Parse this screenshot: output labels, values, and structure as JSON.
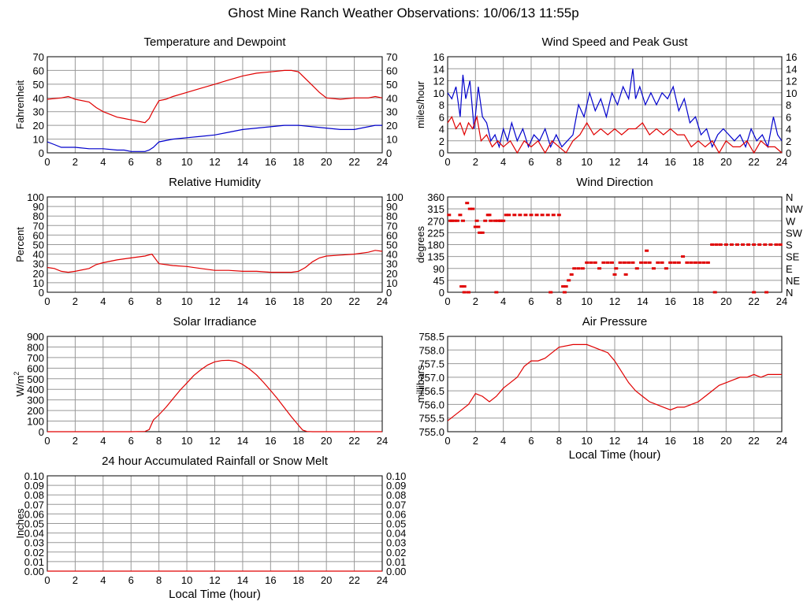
{
  "page_title": "Ghost Mine Ranch Weather Observations: 10/06/13 11:55p",
  "colors": {
    "red": "#e00000",
    "blue": "#0000cc",
    "grid": "#999999",
    "frame": "#000000"
  },
  "chart_data": [
    {
      "id": "temperature",
      "type": "line",
      "title": "Temperature and Dewpoint",
      "ylabel": "Fahrenheit",
      "xlabel": "",
      "xlim": [
        0,
        24
      ],
      "ylim": [
        0,
        70
      ],
      "x_ticks": [
        0,
        2,
        4,
        6,
        8,
        10,
        12,
        14,
        16,
        18,
        20,
        22,
        24
      ],
      "y_ticks": [
        "0",
        "10",
        "20",
        "30",
        "40",
        "50",
        "60",
        "70"
      ],
      "y_ticks_right": [
        "0",
        "10",
        "20",
        "30",
        "40",
        "50",
        "60",
        "70"
      ],
      "grid": true,
      "series": [
        {
          "color": "#e00000",
          "x": [
            0,
            1,
            1.5,
            2,
            3,
            3.5,
            4,
            4.5,
            5,
            5.5,
            6,
            6.5,
            7,
            7.3,
            7.6,
            8,
            8.5,
            9,
            10,
            11,
            12,
            13,
            14,
            15,
            16,
            17,
            17.5,
            18,
            19,
            19.5,
            20,
            21,
            22,
            23,
            23.5,
            24
          ],
          "y": [
            39,
            40,
            41,
            39,
            37,
            33,
            30,
            28,
            26,
            25,
            24,
            23,
            22,
            25,
            31,
            38,
            39,
            41,
            44,
            47,
            50,
            53,
            56,
            58,
            59,
            60,
            60,
            59,
            49,
            44,
            40,
            39,
            40,
            40,
            41,
            40
          ]
        },
        {
          "color": "#0000cc",
          "x": [
            0,
            0.5,
            1,
            2,
            3,
            4,
            5,
            5.5,
            6,
            6.5,
            7,
            7.3,
            7.6,
            8,
            9,
            10,
            11,
            12,
            13,
            14,
            15,
            16,
            17,
            18,
            19,
            20,
            21,
            22,
            23,
            23.5,
            24
          ],
          "y": [
            8,
            6,
            4,
            4,
            3,
            3,
            2,
            2,
            1,
            1,
            1,
            2,
            4,
            8,
            10,
            11,
            12,
            13,
            15,
            17,
            18,
            19,
            20,
            20,
            19,
            18,
            17,
            17,
            19,
            20,
            20
          ]
        }
      ]
    },
    {
      "id": "wind-speed",
      "type": "line",
      "title": "Wind Speed and Peak Gust",
      "ylabel": "miles/hour",
      "xlabel": "",
      "xlim": [
        0,
        24
      ],
      "ylim": [
        0,
        16
      ],
      "x_ticks": [
        0,
        2,
        4,
        6,
        8,
        10,
        12,
        14,
        16,
        18,
        20,
        22,
        24
      ],
      "y_ticks": [
        "0",
        "2",
        "4",
        "6",
        "8",
        "10",
        "12",
        "14",
        "16"
      ],
      "y_ticks_right": [
        "0",
        "2",
        "4",
        "6",
        "8",
        "10",
        "12",
        "14",
        "16"
      ],
      "grid": true,
      "series": [
        {
          "color": "#0000cc",
          "x": [
            0,
            0.3,
            0.6,
            0.9,
            1.1,
            1.3,
            1.6,
            1.9,
            2.2,
            2.5,
            2.8,
            3.1,
            3.4,
            3.7,
            4,
            4.3,
            4.6,
            5,
            5.4,
            5.8,
            6.2,
            6.6,
            7,
            7.4,
            7.8,
            8.2,
            8.6,
            9,
            9.4,
            9.8,
            10.2,
            10.6,
            11,
            11.4,
            11.8,
            12.2,
            12.6,
            13,
            13.3,
            13.5,
            13.8,
            14.2,
            14.6,
            15,
            15.4,
            15.8,
            16.2,
            16.6,
            17,
            17.4,
            17.8,
            18.2,
            18.6,
            19,
            19.4,
            19.8,
            20.2,
            20.6,
            21,
            21.4,
            21.8,
            22.2,
            22.6,
            23,
            23.4,
            23.7,
            24
          ],
          "y": [
            10,
            9,
            11,
            6,
            13,
            9,
            12,
            4,
            11,
            6,
            5,
            2,
            3,
            1,
            4,
            2,
            5,
            2,
            4,
            1,
            3,
            2,
            4,
            1,
            3,
            1,
            2,
            3,
            8,
            6,
            10,
            7,
            9,
            6,
            10,
            8,
            11,
            9,
            14,
            9,
            11,
            8,
            10,
            8,
            10,
            9,
            11,
            7,
            9,
            5,
            6,
            3,
            4,
            1,
            3,
            4,
            3,
            2,
            3,
            1,
            4,
            2,
            3,
            1,
            6,
            3,
            2
          ]
        },
        {
          "color": "#e00000",
          "x": [
            0,
            0.3,
            0.6,
            0.9,
            1.2,
            1.5,
            1.8,
            2.1,
            2.4,
            2.8,
            3.2,
            3.6,
            4,
            4.5,
            5,
            5.5,
            6,
            6.5,
            7,
            7.5,
            8,
            8.5,
            9,
            9.5,
            10,
            10.5,
            11,
            11.5,
            12,
            12.5,
            13,
            13.5,
            14,
            14.5,
            15,
            15.5,
            16,
            16.5,
            17,
            17.5,
            18,
            18.5,
            19,
            19.5,
            20,
            20.5,
            21,
            21.5,
            22,
            22.5,
            23,
            23.5,
            24
          ],
          "y": [
            5,
            6,
            4,
            5,
            3,
            5,
            4,
            6,
            2,
            3,
            1,
            2,
            1,
            2,
            0,
            2,
            1,
            2,
            0,
            2,
            1,
            0,
            2,
            3,
            5,
            3,
            4,
            3,
            4,
            3,
            4,
            4,
            5,
            3,
            4,
            3,
            4,
            3,
            3,
            1,
            2,
            1,
            2,
            0,
            2,
            1,
            1,
            2,
            0,
            2,
            1,
            1,
            0
          ]
        }
      ]
    },
    {
      "id": "humidity",
      "type": "line",
      "title": "Relative Humidity",
      "ylabel": "Percent",
      "xlabel": "",
      "xlim": [
        0,
        24
      ],
      "ylim": [
        0,
        100
      ],
      "x_ticks": [
        0,
        2,
        4,
        6,
        8,
        10,
        12,
        14,
        16,
        18,
        20,
        22,
        24
      ],
      "y_ticks": [
        "0",
        "10",
        "20",
        "30",
        "40",
        "50",
        "60",
        "70",
        "80",
        "90",
        "100"
      ],
      "y_ticks_right": [
        "0",
        "10",
        "20",
        "30",
        "40",
        "50",
        "60",
        "70",
        "80",
        "90",
        "100"
      ],
      "grid": true,
      "series": [
        {
          "color": "#e00000",
          "x": [
            0,
            0.5,
            1,
            1.5,
            2,
            3,
            3.5,
            4,
            5,
            6,
            7,
            7.5,
            8,
            9,
            10,
            11,
            12,
            13,
            14,
            15,
            16,
            17,
            17.5,
            18,
            18.5,
            19,
            19.5,
            20,
            21,
            22,
            23,
            23.5,
            24
          ],
          "y": [
            26,
            25,
            22,
            21,
            22,
            25,
            29,
            31,
            34,
            36,
            38,
            40,
            30,
            28,
            27,
            25,
            23,
            23,
            22,
            22,
            21,
            21,
            21,
            22,
            26,
            32,
            36,
            38,
            39,
            40,
            42,
            44,
            43
          ]
        }
      ]
    },
    {
      "id": "wind-direction",
      "type": "scatter",
      "title": "Wind Direction",
      "ylabel": "degrees",
      "xlabel": "",
      "xlim": [
        0,
        24
      ],
      "ylim": [
        0,
        360
      ],
      "x_ticks": [
        0,
        2,
        4,
        6,
        8,
        10,
        12,
        14,
        16,
        18,
        20,
        22,
        24
      ],
      "y_ticks": [
        "0",
        "45",
        "90",
        "135",
        "180",
        "225",
        "270",
        "315",
        "360"
      ],
      "y_ticks_right": [
        "N",
        "NE",
        "E",
        "SE",
        "S",
        "SW",
        "W",
        "NW",
        "N"
      ],
      "grid": true,
      "series": [
        {
          "color": "#e00000",
          "x": [
            0.1,
            0.3,
            0.5,
            0.7,
            0.9,
            1.1,
            1.2,
            1.4,
            1.6,
            1.8,
            2.0,
            2.1,
            2.3,
            2.5,
            2.7,
            2.9,
            3.1,
            3.4,
            3.6,
            3.8,
            4.0,
            4.2,
            4.4,
            4.8,
            5.2,
            5.6,
            6.0,
            6.4,
            6.8,
            7.2,
            7.6,
            8.0,
            8.3,
            8.5,
            8.7,
            8.9,
            9.1,
            9.4,
            9.7,
            10.0,
            10.3,
            10.6,
            10.9,
            11.2,
            11.5,
            11.8,
            12.1,
            12.4,
            12.7,
            13.0,
            13.3,
            13.6,
            13.9,
            14.2,
            14.5,
            14.8,
            15.1,
            15.4,
            15.7,
            16.0,
            16.3,
            16.6,
            16.9,
            17.2,
            17.5,
            17.8,
            18.1,
            18.4,
            18.7,
            19.0,
            19.3,
            19.6,
            20.0,
            20.4,
            20.8,
            21.2,
            21.6,
            22.0,
            22.4,
            22.8,
            23.2,
            23.6,
            23.9,
            1.0,
            1.2,
            1.5,
            3.5,
            7.4,
            8.4,
            12.0,
            12.8,
            14.3,
            0.2,
            2.2,
            3.0,
            3.8,
            19.2,
            22.0,
            22.9
          ],
          "y": [
            292,
            270,
            270,
            270,
            292,
            270,
            22,
            337,
            315,
            315,
            247,
            270,
            225,
            225,
            270,
            292,
            270,
            270,
            270,
            270,
            270,
            292,
            292,
            292,
            292,
            292,
            292,
            292,
            292,
            292,
            292,
            292,
            22,
            22,
            45,
            67,
            90,
            90,
            90,
            112,
            112,
            112,
            90,
            112,
            112,
            112,
            90,
            112,
            112,
            112,
            112,
            90,
            112,
            112,
            112,
            90,
            112,
            112,
            90,
            112,
            112,
            112,
            135,
            112,
            112,
            112,
            112,
            112,
            112,
            180,
            180,
            180,
            180,
            180,
            180,
            180,
            180,
            180,
            180,
            180,
            180,
            180,
            180,
            22,
            0,
            0,
            0,
            0,
            0,
            67,
            67,
            157,
            270,
            247,
            292,
            270,
            0,
            0,
            0
          ]
        }
      ]
    },
    {
      "id": "solar",
      "type": "line",
      "title": "Solar Irradiance",
      "ylabel": "W/m2",
      "xlabel": "",
      "xlim": [
        0,
        24
      ],
      "ylim": [
        0,
        900
      ],
      "x_ticks": [
        0,
        2,
        4,
        6,
        8,
        10,
        12,
        14,
        16,
        18,
        20,
        22,
        24
      ],
      "y_ticks": [
        "0",
        "100",
        "200",
        "300",
        "400",
        "500",
        "600",
        "700",
        "800",
        "900"
      ],
      "grid": true,
      "series": [
        {
          "color": "#e00000",
          "x": [
            0,
            1,
            2,
            3,
            4,
            5,
            6,
            7,
            7.3,
            7.6,
            8,
            8.5,
            9,
            9.5,
            10,
            10.5,
            11,
            11.5,
            12,
            12.5,
            13,
            13.5,
            14,
            14.5,
            15,
            15.5,
            16,
            16.5,
            17,
            17.5,
            18,
            18.3,
            18.6,
            19,
            20,
            21,
            22,
            23,
            24
          ],
          "y": [
            0,
            0,
            0,
            0,
            0,
            0,
            0,
            2,
            20,
            110,
            160,
            230,
            310,
            390,
            460,
            530,
            585,
            630,
            660,
            672,
            675,
            665,
            635,
            590,
            535,
            465,
            390,
            310,
            225,
            140,
            60,
            15,
            2,
            0,
            0,
            0,
            0,
            0,
            0
          ]
        }
      ]
    },
    {
      "id": "pressure",
      "type": "line",
      "title": "Air Pressure",
      "ylabel": "millibars",
      "xlabel": "Local Time (hour)",
      "xlim": [
        0,
        24
      ],
      "ylim": [
        755.0,
        758.5
      ],
      "x_ticks": [
        0,
        2,
        4,
        6,
        8,
        10,
        12,
        14,
        16,
        18,
        20,
        22,
        24
      ],
      "y_ticks": [
        "755.0",
        "755.5",
        "756.0",
        "756.5",
        "757.0",
        "757.5",
        "758.0",
        "758.5"
      ],
      "grid": true,
      "series": [
        {
          "color": "#e00000",
          "x": [
            0,
            0.5,
            1,
            1.5,
            2,
            2.5,
            3,
            3.5,
            4,
            4.5,
            5,
            5.5,
            6,
            6.5,
            7,
            7.5,
            8,
            9,
            10,
            10.5,
            11,
            11.5,
            12,
            12.5,
            13,
            13.5,
            14,
            14.5,
            15,
            15.5,
            16,
            16.5,
            17,
            17.5,
            18,
            18.5,
            19,
            19.5,
            20,
            20.5,
            21,
            21.5,
            22,
            22.5,
            23,
            23.5,
            24
          ],
          "y": [
            755.4,
            755.6,
            755.8,
            756.0,
            756.4,
            756.3,
            756.1,
            756.3,
            756.6,
            756.8,
            757.0,
            757.4,
            757.6,
            757.6,
            757.7,
            757.9,
            758.1,
            758.2,
            758.2,
            758.1,
            758.0,
            757.9,
            757.6,
            757.2,
            756.8,
            756.5,
            756.3,
            756.1,
            756.0,
            755.9,
            755.8,
            755.9,
            755.9,
            756.0,
            756.1,
            756.3,
            756.5,
            756.7,
            756.8,
            756.9,
            757.0,
            757.0,
            757.1,
            757.0,
            757.1,
            757.1,
            757.1
          ]
        }
      ]
    },
    {
      "id": "rainfall",
      "type": "line",
      "title": "24 hour Accumulated Rainfall or Snow Melt",
      "ylabel": "Inches",
      "xlabel": "Local Time (hour)",
      "xlim": [
        0,
        24
      ],
      "ylim": [
        0,
        0.1
      ],
      "x_ticks": [
        0,
        2,
        4,
        6,
        8,
        10,
        12,
        14,
        16,
        18,
        20,
        22,
        24
      ],
      "y_ticks": [
        "0.00",
        "0.01",
        "0.02",
        "0.03",
        "0.04",
        "0.05",
        "0.06",
        "0.07",
        "0.08",
        "0.09",
        "0.10"
      ],
      "y_ticks_right": [
        "0.00",
        "0.01",
        "0.02",
        "0.03",
        "0.04",
        "0.05",
        "0.06",
        "0.07",
        "0.08",
        "0.09",
        "0.10"
      ],
      "grid": true,
      "series": [
        {
          "color": "#e00000",
          "x": [
            0,
            24
          ],
          "y": [
            0,
            0
          ]
        }
      ]
    }
  ]
}
